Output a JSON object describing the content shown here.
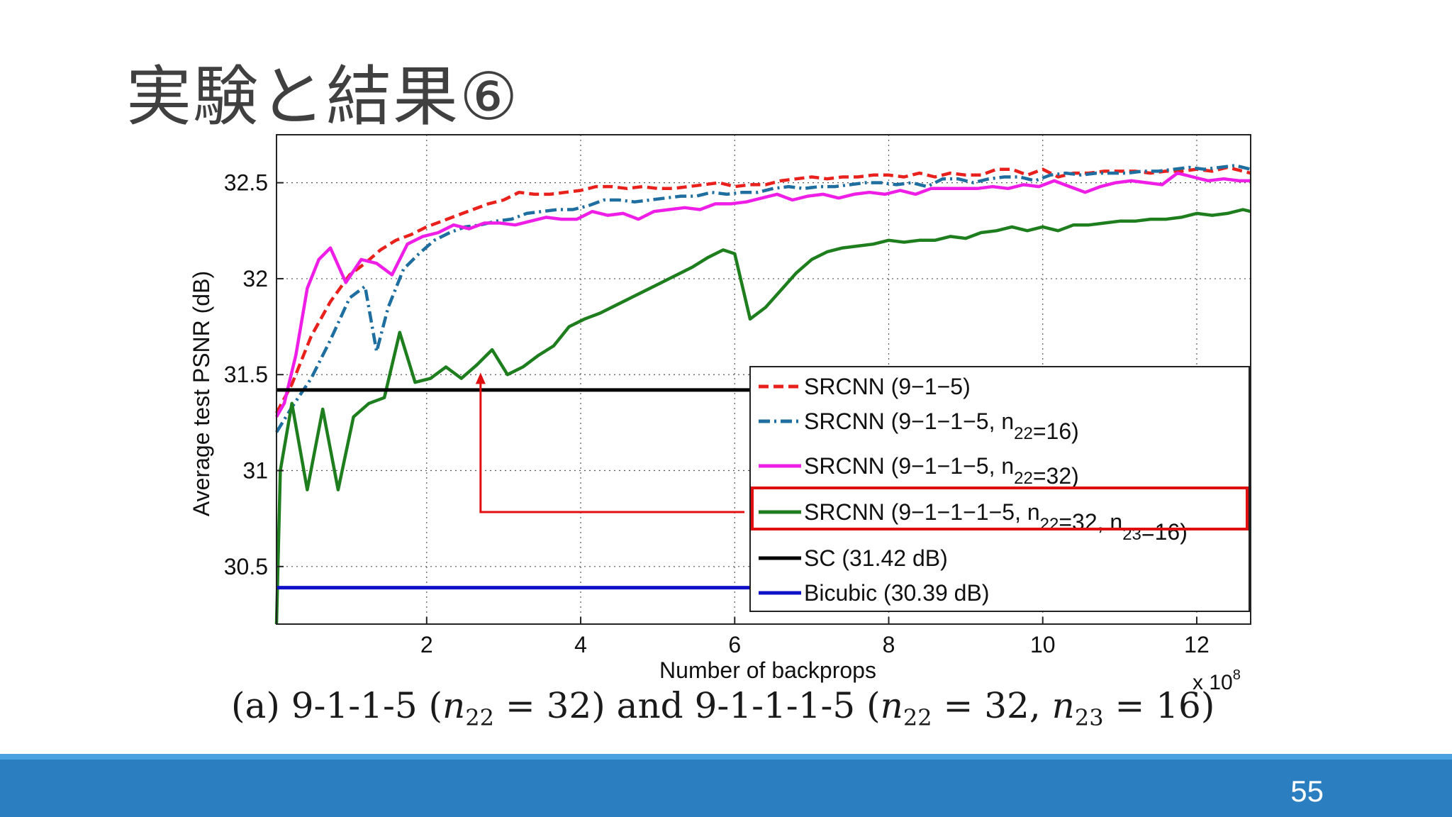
{
  "slide": {
    "title": "実験と結果⑥",
    "caption": "(a) 9-1-1-5 (n22 = 32) and 9-1-1-1-5 (n22 = 32, n23 = 16)",
    "page_number": "55"
  },
  "colors": {
    "footer": "#2b7fc1",
    "footer_accent": "#4aa3df",
    "highlight": "#e01010"
  },
  "chart_data": {
    "type": "line",
    "title": "",
    "xlabel": "Number of backprops",
    "ylabel": "Average test PSNR (dB)",
    "x_multiplier": "x 10^8",
    "xlim": [
      0.05,
      12.7
    ],
    "ylim": [
      30.2,
      32.75
    ],
    "xticks": [
      2,
      4,
      6,
      8,
      10,
      12
    ],
    "yticks": [
      30.5,
      31,
      31.5,
      32,
      32.5
    ],
    "grid": true,
    "legend": "lower-right",
    "series": [
      {
        "name": "SRCNN (9−1−5)",
        "color": "#e8211d",
        "style": "dashed",
        "points": [
          [
            0.05,
            31.3
          ],
          [
            0.25,
            31.45
          ],
          [
            0.5,
            31.7
          ],
          [
            0.75,
            31.88
          ],
          [
            1.0,
            32.02
          ],
          [
            1.2,
            32.08
          ],
          [
            1.4,
            32.15
          ],
          [
            1.6,
            32.2
          ],
          [
            1.8,
            32.23
          ],
          [
            2.0,
            32.27
          ],
          [
            2.2,
            32.3
          ],
          [
            2.4,
            32.33
          ],
          [
            2.6,
            32.36
          ],
          [
            2.8,
            32.39
          ],
          [
            3.0,
            32.41
          ],
          [
            3.2,
            32.45
          ],
          [
            3.4,
            32.44
          ],
          [
            3.6,
            32.44
          ],
          [
            3.8,
            32.45
          ],
          [
            4.0,
            32.46
          ],
          [
            4.2,
            32.48
          ],
          [
            4.4,
            32.48
          ],
          [
            4.6,
            32.47
          ],
          [
            4.8,
            32.48
          ],
          [
            5.0,
            32.47
          ],
          [
            5.2,
            32.47
          ],
          [
            5.4,
            32.48
          ],
          [
            5.6,
            32.49
          ],
          [
            5.8,
            32.5
          ],
          [
            6.0,
            32.48
          ],
          [
            6.2,
            32.49
          ],
          [
            6.4,
            32.49
          ],
          [
            6.6,
            32.51
          ],
          [
            6.8,
            32.52
          ],
          [
            7.0,
            32.53
          ],
          [
            7.2,
            32.52
          ],
          [
            7.4,
            32.53
          ],
          [
            7.6,
            32.53
          ],
          [
            7.8,
            32.54
          ],
          [
            8.0,
            32.54
          ],
          [
            8.2,
            32.53
          ],
          [
            8.4,
            32.55
          ],
          [
            8.6,
            32.53
          ],
          [
            8.8,
            32.55
          ],
          [
            9.0,
            32.54
          ],
          [
            9.2,
            32.54
          ],
          [
            9.4,
            32.57
          ],
          [
            9.6,
            32.57
          ],
          [
            9.8,
            32.54
          ],
          [
            10.0,
            32.57
          ],
          [
            10.2,
            32.53
          ],
          [
            10.4,
            32.55
          ],
          [
            10.6,
            32.55
          ],
          [
            10.8,
            32.56
          ],
          [
            11.0,
            32.56
          ],
          [
            11.2,
            32.56
          ],
          [
            11.4,
            32.55
          ],
          [
            11.6,
            32.56
          ],
          [
            11.8,
            32.56
          ],
          [
            12.0,
            32.57
          ],
          [
            12.2,
            32.56
          ],
          [
            12.4,
            32.58
          ],
          [
            12.6,
            32.56
          ],
          [
            12.7,
            32.55
          ]
        ]
      },
      {
        "name": "SRCNN (9−1−1−5, n22=16)",
        "color": "#1f6ea0",
        "style": "dashdot",
        "points": [
          [
            0.05,
            31.2
          ],
          [
            0.25,
            31.33
          ],
          [
            0.5,
            31.48
          ],
          [
            0.75,
            31.68
          ],
          [
            1.0,
            31.9
          ],
          [
            1.2,
            31.96
          ],
          [
            1.35,
            31.62
          ],
          [
            1.5,
            31.85
          ],
          [
            1.7,
            32.05
          ],
          [
            1.9,
            32.13
          ],
          [
            2.1,
            32.2
          ],
          [
            2.3,
            32.24
          ],
          [
            2.5,
            32.27
          ],
          [
            2.7,
            32.28
          ],
          [
            2.9,
            32.3
          ],
          [
            3.1,
            32.31
          ],
          [
            3.3,
            32.34
          ],
          [
            3.5,
            32.35
          ],
          [
            3.7,
            32.36
          ],
          [
            3.9,
            32.36
          ],
          [
            4.1,
            32.38
          ],
          [
            4.3,
            32.41
          ],
          [
            4.5,
            32.41
          ],
          [
            4.7,
            32.4
          ],
          [
            4.9,
            32.41
          ],
          [
            5.1,
            32.42
          ],
          [
            5.3,
            32.43
          ],
          [
            5.5,
            32.43
          ],
          [
            5.7,
            32.45
          ],
          [
            5.9,
            32.44
          ],
          [
            6.1,
            32.45
          ],
          [
            6.3,
            32.45
          ],
          [
            6.5,
            32.47
          ],
          [
            6.7,
            32.48
          ],
          [
            6.9,
            32.47
          ],
          [
            7.1,
            32.48
          ],
          [
            7.3,
            32.48
          ],
          [
            7.5,
            32.49
          ],
          [
            7.7,
            32.5
          ],
          [
            7.9,
            32.5
          ],
          [
            8.1,
            32.49
          ],
          [
            8.3,
            32.5
          ],
          [
            8.5,
            32.48
          ],
          [
            8.7,
            32.52
          ],
          [
            8.9,
            32.52
          ],
          [
            9.1,
            32.5
          ],
          [
            9.3,
            32.52
          ],
          [
            9.5,
            32.53
          ],
          [
            9.7,
            32.53
          ],
          [
            9.9,
            32.51
          ],
          [
            10.1,
            32.54
          ],
          [
            10.3,
            32.55
          ],
          [
            10.5,
            32.54
          ],
          [
            10.7,
            32.55
          ],
          [
            10.9,
            32.55
          ],
          [
            11.1,
            32.55
          ],
          [
            11.3,
            32.56
          ],
          [
            11.5,
            32.56
          ],
          [
            11.7,
            32.57
          ],
          [
            11.9,
            32.58
          ],
          [
            12.1,
            32.57
          ],
          [
            12.3,
            32.58
          ],
          [
            12.5,
            32.59
          ],
          [
            12.7,
            32.57
          ]
        ]
      },
      {
        "name": "SRCNN (9−1−1−5, n22=32)",
        "color": "#ee1ee6",
        "style": "solid",
        "points": [
          [
            0.05,
            31.28
          ],
          [
            0.15,
            31.35
          ],
          [
            0.3,
            31.6
          ],
          [
            0.45,
            31.95
          ],
          [
            0.6,
            32.1
          ],
          [
            0.75,
            32.16
          ],
          [
            0.95,
            31.98
          ],
          [
            1.15,
            32.1
          ],
          [
            1.35,
            32.08
          ],
          [
            1.55,
            32.02
          ],
          [
            1.75,
            32.18
          ],
          [
            1.95,
            32.22
          ],
          [
            2.15,
            32.24
          ],
          [
            2.35,
            32.28
          ],
          [
            2.55,
            32.26
          ],
          [
            2.75,
            32.29
          ],
          [
            2.95,
            32.29
          ],
          [
            3.15,
            32.28
          ],
          [
            3.35,
            32.3
          ],
          [
            3.55,
            32.32
          ],
          [
            3.75,
            32.31
          ],
          [
            3.95,
            32.31
          ],
          [
            4.15,
            32.35
          ],
          [
            4.35,
            32.33
          ],
          [
            4.55,
            32.34
          ],
          [
            4.75,
            32.31
          ],
          [
            4.95,
            32.35
          ],
          [
            5.15,
            32.36
          ],
          [
            5.35,
            32.37
          ],
          [
            5.55,
            32.36
          ],
          [
            5.75,
            32.39
          ],
          [
            5.95,
            32.39
          ],
          [
            6.15,
            32.4
          ],
          [
            6.35,
            32.42
          ],
          [
            6.55,
            32.44
          ],
          [
            6.75,
            32.41
          ],
          [
            6.95,
            32.43
          ],
          [
            7.15,
            32.44
          ],
          [
            7.35,
            32.42
          ],
          [
            7.55,
            32.44
          ],
          [
            7.75,
            32.45
          ],
          [
            7.95,
            32.44
          ],
          [
            8.15,
            32.46
          ],
          [
            8.35,
            32.44
          ],
          [
            8.55,
            32.47
          ],
          [
            8.75,
            32.47
          ],
          [
            8.95,
            32.47
          ],
          [
            9.15,
            32.47
          ],
          [
            9.35,
            32.48
          ],
          [
            9.55,
            32.47
          ],
          [
            9.75,
            32.49
          ],
          [
            9.95,
            32.48
          ],
          [
            10.15,
            32.51
          ],
          [
            10.35,
            32.48
          ],
          [
            10.55,
            32.45
          ],
          [
            10.75,
            32.48
          ],
          [
            10.95,
            32.5
          ],
          [
            11.15,
            32.51
          ],
          [
            11.35,
            32.5
          ],
          [
            11.55,
            32.49
          ],
          [
            11.75,
            32.55
          ],
          [
            11.95,
            32.53
          ],
          [
            12.15,
            32.51
          ],
          [
            12.35,
            32.52
          ],
          [
            12.55,
            32.51
          ],
          [
            12.7,
            32.51
          ]
        ]
      },
      {
        "name": "SRCNN (9−1−1−1−5, n22=32, n23=16)",
        "color": "#1e7e1e",
        "style": "solid",
        "points": [
          [
            0.05,
            30.2
          ],
          [
            0.1,
            31.0
          ],
          [
            0.25,
            31.35
          ],
          [
            0.45,
            30.9
          ],
          [
            0.65,
            31.32
          ],
          [
            0.85,
            30.9
          ],
          [
            1.05,
            31.28
          ],
          [
            1.25,
            31.35
          ],
          [
            1.45,
            31.38
          ],
          [
            1.65,
            31.72
          ],
          [
            1.85,
            31.46
          ],
          [
            2.05,
            31.48
          ],
          [
            2.25,
            31.54
          ],
          [
            2.45,
            31.48
          ],
          [
            2.65,
            31.55
          ],
          [
            2.85,
            31.63
          ],
          [
            3.05,
            31.5
          ],
          [
            3.25,
            31.54
          ],
          [
            3.45,
            31.6
          ],
          [
            3.65,
            31.65
          ],
          [
            3.85,
            31.75
          ],
          [
            4.05,
            31.79
          ],
          [
            4.25,
            31.82
          ],
          [
            4.45,
            31.86
          ],
          [
            4.65,
            31.9
          ],
          [
            4.85,
            31.94
          ],
          [
            5.05,
            31.98
          ],
          [
            5.25,
            32.02
          ],
          [
            5.45,
            32.06
          ],
          [
            5.65,
            32.11
          ],
          [
            5.85,
            32.15
          ],
          [
            6.0,
            32.13
          ],
          [
            6.2,
            31.79
          ],
          [
            6.4,
            31.85
          ],
          [
            6.6,
            31.94
          ],
          [
            6.8,
            32.03
          ],
          [
            7.0,
            32.1
          ],
          [
            7.2,
            32.14
          ],
          [
            7.4,
            32.16
          ],
          [
            7.6,
            32.17
          ],
          [
            7.8,
            32.18
          ],
          [
            8.0,
            32.2
          ],
          [
            8.2,
            32.19
          ],
          [
            8.4,
            32.2
          ],
          [
            8.6,
            32.2
          ],
          [
            8.8,
            32.22
          ],
          [
            9.0,
            32.21
          ],
          [
            9.2,
            32.24
          ],
          [
            9.4,
            32.25
          ],
          [
            9.6,
            32.27
          ],
          [
            9.8,
            32.25
          ],
          [
            10.0,
            32.27
          ],
          [
            10.2,
            32.25
          ],
          [
            10.4,
            32.28
          ],
          [
            10.6,
            32.28
          ],
          [
            10.8,
            32.29
          ],
          [
            11.0,
            32.3
          ],
          [
            11.2,
            32.3
          ],
          [
            11.4,
            32.31
          ],
          [
            11.6,
            32.31
          ],
          [
            11.8,
            32.32
          ],
          [
            12.0,
            32.34
          ],
          [
            12.2,
            32.33
          ],
          [
            12.4,
            32.34
          ],
          [
            12.6,
            32.36
          ],
          [
            12.7,
            32.35
          ]
        ]
      },
      {
        "name": "SC (31.42 dB)",
        "color": "#000000",
        "style": "solid",
        "points": [
          [
            0.05,
            31.42
          ],
          [
            12.7,
            31.42
          ]
        ]
      },
      {
        "name": "Bicubic (30.39 dB)",
        "color": "#1010c8",
        "style": "solid",
        "points": [
          [
            0.05,
            30.39
          ],
          [
            12.7,
            30.39
          ]
        ]
      }
    ],
    "annotation": {
      "type": "arrow",
      "color": "#e01010",
      "points_to": [
        2.7,
        31.54
      ],
      "from_legend_item": 3
    }
  }
}
